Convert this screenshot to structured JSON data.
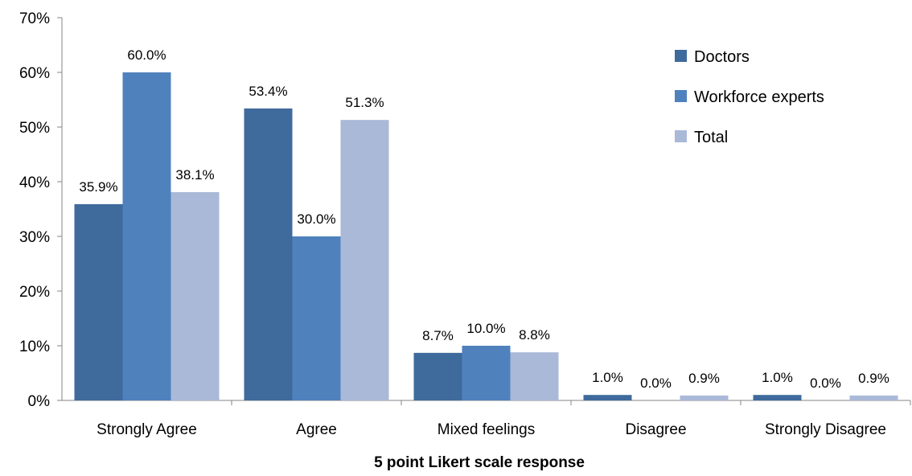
{
  "chart_data": {
    "type": "bar",
    "title": "",
    "xlabel": "5 point Likert scale response",
    "ylabel": "",
    "ylim": [
      0,
      70
    ],
    "yticks": [
      "0%",
      "10%",
      "20%",
      "30%",
      "40%",
      "50%",
      "60%",
      "70%"
    ],
    "categories": [
      "Strongly Agree",
      "Agree",
      "Mixed feelings",
      "Disagree",
      "Strongly Disagree"
    ],
    "series": [
      {
        "name": "Doctors",
        "color": "#3F6A9C",
        "values": [
          35.9,
          53.4,
          8.7,
          1.0,
          1.0
        ],
        "labels": [
          "35.9%",
          "53.4%",
          "8.7%",
          "1.0%",
          "1.0%"
        ]
      },
      {
        "name": "Workforce experts",
        "color": "#4F81BD",
        "values": [
          60.0,
          30.0,
          10.0,
          0.0,
          0.0
        ],
        "labels": [
          "60.0%",
          "30.0%",
          "10.0%",
          "0.0%",
          "0.0%"
        ]
      },
      {
        "name": "Total",
        "color": "#AAB9D8",
        "values": [
          38.1,
          51.3,
          8.8,
          0.9,
          0.9
        ],
        "labels": [
          "38.1%",
          "51.3%",
          "8.8%",
          "0.9%",
          "0.9%"
        ]
      }
    ],
    "grid": false,
    "legend": "top-right"
  }
}
